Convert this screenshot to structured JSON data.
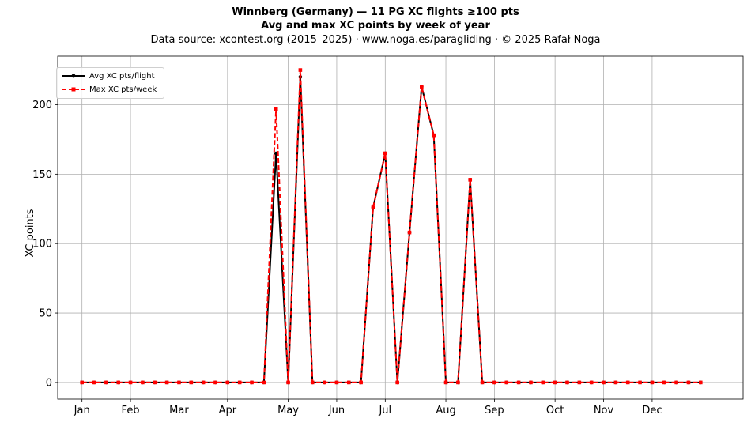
{
  "title": {
    "line1": "Winnberg (Germany)  —  11 PG XC flights ≥100 pts",
    "line2": "Avg and max XC points by week of year",
    "line3": "Data source: xcontest.org (2015–2025)  ·  www.noga.es/paragliding  ·  © 2025 Rafał Noga"
  },
  "chart_data": {
    "type": "line",
    "title": "Winnberg (Germany)  —  11 PG XC flights ≥100 pts",
    "subtitle": "Avg and max XC points by week of year",
    "xlabel": "",
    "ylabel": "XC points",
    "x": [
      1,
      2,
      3,
      4,
      5,
      6,
      7,
      8,
      9,
      10,
      11,
      12,
      13,
      14,
      15,
      16,
      17,
      18,
      19,
      20,
      21,
      22,
      23,
      24,
      25,
      26,
      27,
      28,
      29,
      30,
      31,
      32,
      33,
      34,
      35,
      36,
      37,
      38,
      39,
      40,
      41,
      42,
      43,
      44,
      45,
      46,
      47,
      48,
      49,
      50,
      51,
      52
    ],
    "xlim": [
      -1.0,
      55.5
    ],
    "ylim": [
      -12,
      235
    ],
    "yticks": [
      0,
      50,
      100,
      150,
      200
    ],
    "xticks": [
      {
        "x": 1.0,
        "label": "Jan"
      },
      {
        "x": 5.0,
        "label": "Feb"
      },
      {
        "x": 9.0,
        "label": "Mar"
      },
      {
        "x": 13.0,
        "label": "Apr"
      },
      {
        "x": 18.0,
        "label": "May"
      },
      {
        "x": 22.0,
        "label": "Jun"
      },
      {
        "x": 26.0,
        "label": "Jul"
      },
      {
        "x": 31.0,
        "label": "Aug"
      },
      {
        "x": 35.0,
        "label": "Sep"
      },
      {
        "x": 40.0,
        "label": "Oct"
      },
      {
        "x": 44.0,
        "label": "Nov"
      },
      {
        "x": 48.0,
        "label": "Dec"
      }
    ],
    "grid": true,
    "legend_position": "top-left",
    "series": [
      {
        "name": "Avg XC pts/flight",
        "color": "#000000",
        "style": "solid",
        "marker": "circle",
        "values": [
          0,
          0,
          0,
          0,
          0,
          0,
          0,
          0,
          0,
          0,
          0,
          0,
          0,
          0,
          0,
          0,
          165,
          0,
          220,
          0,
          0,
          0,
          0,
          0,
          126,
          165,
          0,
          108,
          213,
          178,
          0,
          0,
          146,
          0,
          0,
          0,
          0,
          0,
          0,
          0,
          0,
          0,
          0,
          0,
          0,
          0,
          0,
          0,
          0,
          0,
          0,
          0
        ]
      },
      {
        "name": "Max XC pts/week",
        "color": "#ff0000",
        "style": "dashed",
        "marker": "square",
        "values": [
          0,
          0,
          0,
          0,
          0,
          0,
          0,
          0,
          0,
          0,
          0,
          0,
          0,
          0,
          0,
          0,
          197,
          0,
          225,
          0,
          0,
          0,
          0,
          0,
          126,
          165,
          0,
          108,
          213,
          178,
          0,
          0,
          146,
          0,
          0,
          0,
          0,
          0,
          0,
          0,
          0,
          0,
          0,
          0,
          0,
          0,
          0,
          0,
          0,
          0,
          0,
          0
        ]
      }
    ]
  }
}
